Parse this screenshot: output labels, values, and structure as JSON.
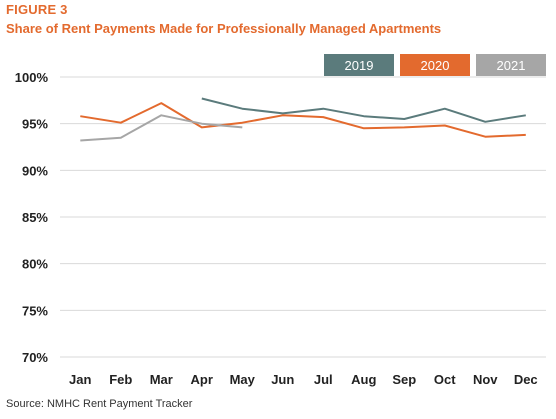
{
  "figure_label": "FIGURE 3",
  "source": "Source: NMHC Rent Payment Tracker",
  "colors": {
    "accent": "#e36a2e",
    "s2019": "#5b7b7c",
    "s2020": "#e36a2e",
    "s2021": "#a6a6a6",
    "grid": "#d9d9d9"
  },
  "chart_data": {
    "type": "line",
    "title": "Share of Rent Payments Made for Professionally Managed Apartments",
    "xlabel": "",
    "ylabel": "",
    "ylim": [
      70,
      100
    ],
    "yticks": [
      70,
      75,
      80,
      85,
      90,
      95,
      100
    ],
    "ytick_labels": [
      "70%",
      "75%",
      "80%",
      "85%",
      "90%",
      "95%",
      "100%"
    ],
    "grid": true,
    "legend_position": "top-right",
    "categories": [
      "Jan",
      "Feb",
      "Mar",
      "Apr",
      "May",
      "Jun",
      "Jul",
      "Aug",
      "Sep",
      "Oct",
      "Nov",
      "Dec"
    ],
    "series": [
      {
        "name": "2019",
        "color": "#5b7b7c",
        "values": [
          null,
          null,
          null,
          97.7,
          96.6,
          96.1,
          96.6,
          95.8,
          95.5,
          96.6,
          95.2,
          95.9
        ]
      },
      {
        "name": "2020",
        "color": "#e36a2e",
        "values": [
          95.8,
          95.1,
          97.2,
          94.6,
          95.1,
          95.9,
          95.7,
          94.5,
          94.6,
          94.8,
          93.6,
          93.8
        ]
      },
      {
        "name": "2021",
        "color": "#a6a6a6",
        "values": [
          93.2,
          93.5,
          95.9,
          95.0,
          94.6,
          null,
          null,
          null,
          null,
          null,
          null,
          null
        ]
      }
    ]
  }
}
